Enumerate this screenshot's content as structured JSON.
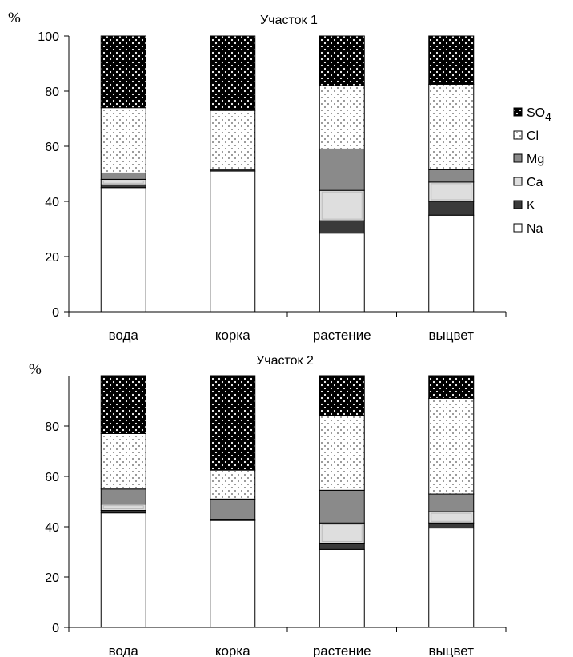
{
  "colors": {
    "Na": "#ffffff",
    "K": "#3a3a3a",
    "Ca": "#dedede",
    "Mg": "#8a8a8a",
    "Cl": "#ffffff",
    "SO4": "#000000"
  },
  "legend": {
    "items": [
      {
        "key": "SO4",
        "label": "SO",
        "sub": "4"
      },
      {
        "key": "Cl",
        "label": "Cl",
        "sub": ""
      },
      {
        "key": "Mg",
        "label": "Mg",
        "sub": ""
      },
      {
        "key": "Ca",
        "label": "Ca",
        "sub": ""
      },
      {
        "key": "K",
        "label": "K",
        "sub": ""
      },
      {
        "key": "Na",
        "label": "Na",
        "sub": ""
      }
    ]
  },
  "chart_data": [
    {
      "type": "bar",
      "stacked": true,
      "title": "Участок 1",
      "ylabel": "%",
      "ylim": [
        0,
        100
      ],
      "yticks": [
        0,
        20,
        40,
        60,
        80,
        100
      ],
      "categories": [
        "вода",
        "корка",
        "растение",
        "выцвет"
      ],
      "series": [
        {
          "name": "Na",
          "values": [
            45,
            51,
            28.5,
            35
          ]
        },
        {
          "name": "K",
          "values": [
            1,
            0.7,
            4.5,
            5
          ]
        },
        {
          "name": "Ca",
          "values": [
            2,
            0,
            11,
            7
          ]
        },
        {
          "name": "Mg",
          "values": [
            2.3,
            0,
            15,
            4.5
          ]
        },
        {
          "name": "Cl",
          "values": [
            23.7,
            21.3,
            23,
            31
          ]
        },
        {
          "name": "SO4",
          "values": [
            26,
            27,
            18,
            17.5
          ]
        }
      ]
    },
    {
      "type": "bar",
      "stacked": true,
      "title": "Участок 2",
      "ylabel": "%",
      "ylim": [
        0,
        100
      ],
      "yticks": [
        0,
        20,
        40,
        60,
        80
      ],
      "categories": [
        "вода",
        "корка",
        "растение",
        "выцвет"
      ],
      "series": [
        {
          "name": "Na",
          "values": [
            45.5,
            42.5,
            31,
            39.5
          ]
        },
        {
          "name": "K",
          "values": [
            1,
            0.5,
            2.5,
            2
          ]
        },
        {
          "name": "Ca",
          "values": [
            2.5,
            0,
            8,
            4.5
          ]
        },
        {
          "name": "Mg",
          "values": [
            6,
            8,
            13,
            7
          ]
        },
        {
          "name": "Cl",
          "values": [
            22,
            11.5,
            29.5,
            38
          ]
        },
        {
          "name": "SO4",
          "values": [
            23,
            37.5,
            16,
            9
          ]
        }
      ]
    }
  ]
}
